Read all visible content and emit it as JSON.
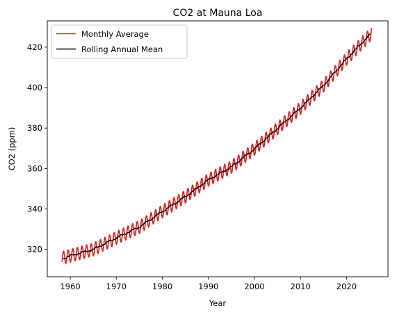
{
  "chart_data": {
    "type": "line",
    "title": "CO2 at Mauna Loa",
    "xlabel": "Year",
    "ylabel": "CO2 (ppm)",
    "xlim": [
      1955,
      2029
    ],
    "ylim": [
      306.5,
      433
    ],
    "xticks": [
      1960,
      1970,
      1980,
      1990,
      2000,
      2010,
      2020
    ],
    "yticks": [
      320,
      340,
      360,
      380,
      400,
      420
    ],
    "grid": false,
    "legend_position": "top-left",
    "series": [
      {
        "name": "Monthly Average",
        "color": "#d62728",
        "style": "seasonal",
        "seasonal_amplitude_ppm": 3.2,
        "x": [
          1958.2,
          1960,
          1965,
          1970,
          1975,
          1980,
          1985,
          1990,
          1995,
          2000,
          2005,
          2010,
          2015,
          2020,
          2025.5
        ],
        "y": [
          315.7,
          316.9,
          320.0,
          325.7,
          331.1,
          338.8,
          346.1,
          354.4,
          360.8,
          369.7,
          379.8,
          389.9,
          401.0,
          414.2,
          427.0
        ]
      },
      {
        "name": "Rolling Annual Mean",
        "color": "#000000",
        "style": "smooth",
        "x": [
          1958.5,
          1960,
          1965,
          1970,
          1975,
          1980,
          1985,
          1990,
          1995,
          2000,
          2005,
          2010,
          2015,
          2020,
          2025.2
        ],
        "y": [
          315.5,
          316.9,
          320.0,
          325.7,
          331.1,
          338.8,
          346.1,
          354.4,
          360.8,
          369.7,
          379.8,
          389.9,
          401.0,
          414.2,
          426.5
        ]
      }
    ]
  }
}
